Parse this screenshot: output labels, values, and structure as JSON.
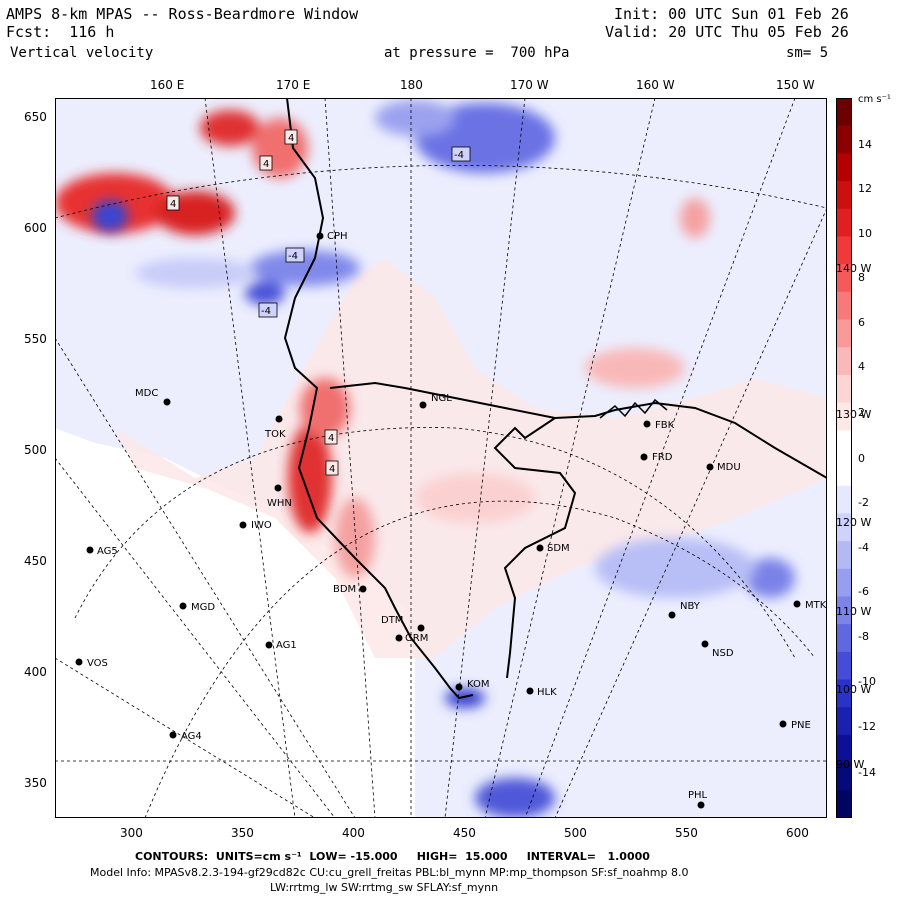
{
  "header": {
    "title": "AMPS 8-km MPAS -- Ross-Beardmore Window",
    "forecast": "Fcst:  116 h",
    "field": "Vertical velocity",
    "init": "Init: 00 UTC Sun 01 Feb 26",
    "valid": "Valid: 20 UTC Thu 05 Feb 26",
    "pressure": "at pressure =  700 hPa",
    "smoothing": "sm= 5"
  },
  "axes": {
    "top_longitudes": [
      "160 E",
      "170 E",
      "180",
      "170 W",
      "160 W",
      "150 W"
    ],
    "right_longitudes": [
      "140 W",
      "130 W",
      "120 W",
      "110 W",
      "100 W",
      "90 W"
    ],
    "left_ticks": [
      "650",
      "600",
      "550",
      "500",
      "450",
      "400",
      "350"
    ],
    "bottom_ticks": [
      "300",
      "350",
      "400",
      "450",
      "500",
      "550",
      "600"
    ]
  },
  "colorbar": {
    "unit": "cm s⁻¹",
    "labels": [
      "14",
      "12",
      "10",
      "8",
      "6",
      "4",
      "2",
      "0",
      "-2",
      "-4",
      "-6",
      "-8",
      "-10",
      "-12",
      "-14"
    ],
    "colors": [
      "#6a0000",
      "#8c0000",
      "#b30000",
      "#cc1010",
      "#e02020",
      "#f03a3a",
      "#f55a5a",
      "#f77a7a",
      "#f99a9a",
      "#fbb8b8",
      "#fdd5d5",
      "#fde8e8",
      "#ffffff",
      "#ffffff",
      "#e6e8ff",
      "#cfd3fb",
      "#b3b9f5",
      "#979eef",
      "#7c84e8",
      "#6068e0",
      "#454dd8",
      "#2a32c8",
      "#1a20b0",
      "#0c1096",
      "#050a7a",
      "#020560"
    ]
  },
  "stations": [
    {
      "code": "CPH"
    },
    {
      "code": "NGL"
    },
    {
      "code": "MDC"
    },
    {
      "code": "TOK"
    },
    {
      "code": "WHN"
    },
    {
      "code": "IWO"
    },
    {
      "code": "AG5"
    },
    {
      "code": "MGD"
    },
    {
      "code": "BDM"
    },
    {
      "code": "DTM"
    },
    {
      "code": "GRM"
    },
    {
      "code": "AG1"
    },
    {
      "code": "VOS"
    },
    {
      "code": "AG4"
    },
    {
      "code": "KOM"
    },
    {
      "code": "HLK"
    },
    {
      "code": "SDM"
    },
    {
      "code": "NBY"
    },
    {
      "code": "FBK"
    },
    {
      "code": "FRD"
    },
    {
      "code": "MDU"
    },
    {
      "code": "MTK"
    },
    {
      "code": "NSD"
    },
    {
      "code": "PNE"
    },
    {
      "code": "PHL"
    }
  ],
  "contour_labels": [
    "4",
    "4",
    "4",
    "-4",
    "-4",
    "-4",
    "4",
    "4"
  ],
  "footer": {
    "contours_line": "CONTOURS:  UNITS=cm s⁻¹  LOW= -15.000     HIGH=  15.000     INTERVAL=   1.0000",
    "model_info": "Model Info: MPASv8.2.3-194-gf29cd82c CU:cu_grell_freitas PBL:bl_mynn MP:mp_thompson SF:sf_noahmp 8.0",
    "model_info2": "LW:rrtmg_lw SW:rrtmg_sw SFLAY:sf_mynn"
  }
}
